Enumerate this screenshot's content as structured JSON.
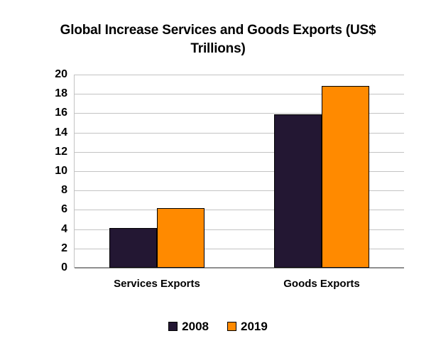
{
  "chart_data": {
    "type": "bar",
    "title": "Global Increase Services and Goods Exports (US$ Trillions)",
    "categories": [
      "Services Exports",
      "Goods Exports"
    ],
    "series": [
      {
        "name": "2008",
        "color": "#231733",
        "values": [
          4.1,
          15.9
        ]
      },
      {
        "name": "2019",
        "color": "#FF8A00",
        "values": [
          6.2,
          18.8
        ]
      }
    ],
    "xlabel": "",
    "ylabel": "",
    "ylim": [
      0,
      20
    ],
    "yticks": [
      0,
      2,
      4,
      6,
      8,
      10,
      12,
      14,
      16,
      18,
      20
    ],
    "grid": true,
    "legend_position": "bottom"
  },
  "colors": {
    "background": "#FFFFFF",
    "gridline": "#C3C3C3",
    "axis_line": "#8F8F8F",
    "bar_border": "#000000",
    "text": "#000000",
    "series_2008": "#231733",
    "series_2019": "#FF8A00"
  }
}
